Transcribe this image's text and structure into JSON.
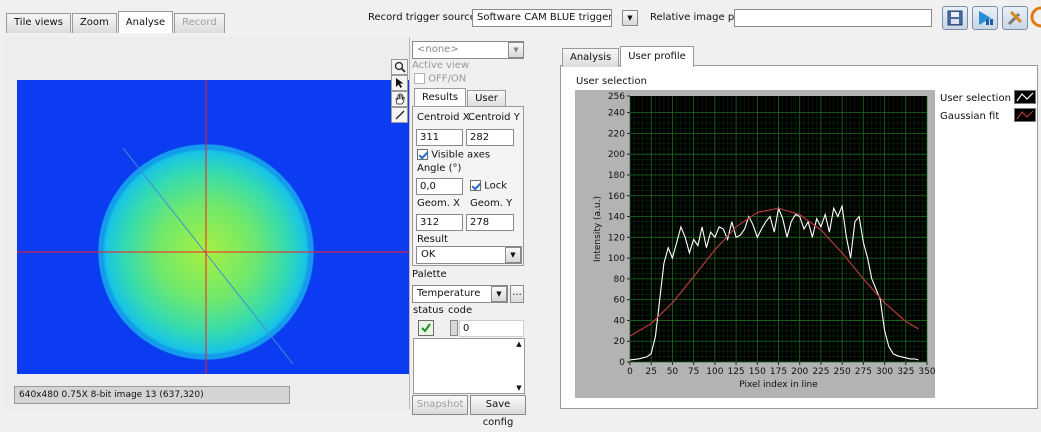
{
  "tabs": [
    {
      "label": "Tile views",
      "state": "normal"
    },
    {
      "label": "Zoom",
      "state": "normal"
    },
    {
      "label": "Analyse",
      "state": "active"
    },
    {
      "label": "Record",
      "state": "disabled"
    }
  ],
  "topbar": {
    "trigger_label": "Record trigger source",
    "trigger_value": "Software CAM BLUE trigger",
    "path_label": "Relative image path",
    "path_value": ""
  },
  "image_view": {
    "status_text": "640x480 0.75X 8-bit image 13    (637,320)",
    "beam_colors": [
      "#0b3cf2",
      "#18c4e6",
      "#45e39a",
      "#a9f041"
    ]
  },
  "side_panel": {
    "view_select": "<none>",
    "active_view_label": "Active view",
    "off_on_label": "OFF/ON",
    "tabs": [
      "Results",
      "User"
    ],
    "centroid_x_label": "Centroid X",
    "centroid_y_label": "Centroid Y",
    "centroid_x": "311",
    "centroid_y": "282",
    "visible_axes_label": "Visible axes",
    "angle_label": "Angle (°)",
    "angle_value": "0,0",
    "lock_label": "Lock",
    "geom_x_label": "Geom. X",
    "geom_y_label": "Geom. Y",
    "geom_x": "312",
    "geom_y": "278",
    "result_label": "Result",
    "result_value": "OK",
    "palette_label": "Palette",
    "palette_value": "Temperature",
    "palette_more": "...",
    "status_label": "status",
    "code_label": "code",
    "code_value": "0",
    "snapshot_label": "Snapshot",
    "save_config_label": "Save config"
  },
  "right_panel": {
    "tabs": [
      "Analysis",
      "User profile"
    ],
    "active_tab": "User profile",
    "section_label": "User selection",
    "legend": [
      {
        "name": "User selection",
        "color": "#ffffff"
      },
      {
        "name": "Gaussian fit",
        "color": "#b33a3a"
      }
    ]
  },
  "chart_data": {
    "type": "line",
    "title": "",
    "xlabel": "Pixel index in line",
    "ylabel": "Intensity (a.u.)",
    "xlim": [
      0,
      350
    ],
    "ylim": [
      0,
      256
    ],
    "xticks": [
      0,
      25,
      50,
      75,
      100,
      125,
      150,
      175,
      200,
      225,
      250,
      275,
      300,
      325,
      350
    ],
    "yticks": [
      0,
      20,
      40,
      60,
      80,
      100,
      120,
      140,
      160,
      180,
      200,
      220,
      240,
      256
    ],
    "grid": true,
    "background": "#000000",
    "grid_color": "#1f6b1f",
    "series": [
      {
        "name": "User selection",
        "color": "#ffffff",
        "x": [
          0,
          10,
          20,
          25,
          30,
          35,
          40,
          45,
          50,
          55,
          60,
          65,
          70,
          75,
          80,
          85,
          90,
          95,
          100,
          105,
          110,
          115,
          120,
          125,
          130,
          135,
          140,
          145,
          150,
          155,
          160,
          165,
          170,
          175,
          180,
          185,
          190,
          195,
          200,
          205,
          210,
          215,
          220,
          225,
          230,
          235,
          240,
          245,
          250,
          255,
          260,
          265,
          270,
          275,
          280,
          285,
          290,
          295,
          300,
          305,
          310,
          315,
          320,
          325,
          330,
          335,
          340
        ],
        "y": [
          2,
          3,
          5,
          8,
          25,
          60,
          95,
          110,
          100,
          115,
          130,
          120,
          105,
          118,
          112,
          130,
          110,
          125,
          120,
          130,
          128,
          118,
          135,
          120,
          122,
          128,
          140,
          132,
          120,
          128,
          135,
          140,
          125,
          148,
          138,
          120,
          135,
          142,
          140,
          128,
          135,
          120,
          138,
          130,
          142,
          125,
          148,
          140,
          150,
          120,
          100,
          135,
          140,
          115,
          100,
          80,
          70,
          60,
          30,
          15,
          8,
          6,
          5,
          4,
          3,
          3,
          2
        ]
      },
      {
        "name": "Gaussian fit",
        "color": "#b33a3a",
        "x": [
          0,
          25,
          50,
          75,
          100,
          125,
          150,
          175,
          200,
          225,
          250,
          275,
          300,
          325,
          340
        ],
        "y": [
          25,
          37,
          57,
          82,
          108,
          130,
          144,
          148,
          142,
          127,
          105,
          80,
          57,
          39,
          32
        ]
      }
    ]
  }
}
